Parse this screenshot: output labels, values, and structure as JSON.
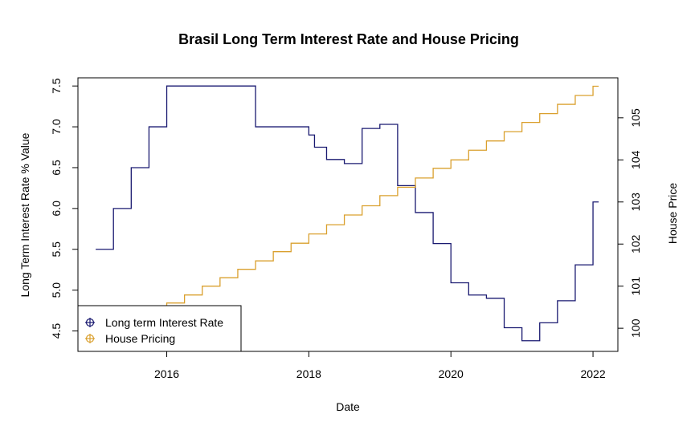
{
  "chart_data": {
    "type": "line",
    "title": "Brasil Long Term Interest Rate and House Pricing",
    "xlabel": "Date",
    "ylabel": "Long Term Interest Rate % Value",
    "y2label": "House Price",
    "xlim": [
      2014.75,
      2022.35
    ],
    "ylim": [
      4.25,
      7.6
    ],
    "y2lim": [
      99.45,
      105.95
    ],
    "x_ticks": [
      "2016",
      "2018",
      "2020",
      "2022"
    ],
    "y_ticks": [
      "4.5",
      "5.0",
      "5.5",
      "6.0",
      "6.5",
      "7.0",
      "7.5"
    ],
    "y2_ticks": [
      "100",
      "101",
      "102",
      "103",
      "104",
      "105"
    ],
    "grid": false,
    "legend_position": "bottom-left",
    "series": [
      {
        "name": "Long term Interest Rate",
        "axis": "left",
        "color": "#191970",
        "step": true,
        "x": [
          2015.0,
          2015.25,
          2015.5,
          2015.75,
          2016.0,
          2016.25,
          2016.5,
          2016.75,
          2017.0,
          2017.25,
          2017.5,
          2017.75,
          2018.0,
          2018.08,
          2018.25,
          2018.5,
          2018.75,
          2019.0,
          2019.25,
          2019.5,
          2019.75,
          2020.0,
          2020.25,
          2020.5,
          2020.75,
          2021.0,
          2021.25,
          2021.5,
          2021.75,
          2022.0,
          2022.08
        ],
        "y": [
          5.5,
          6.0,
          6.5,
          7.0,
          7.5,
          7.5,
          7.5,
          7.5,
          7.5,
          7.0,
          7.0,
          7.0,
          6.9,
          6.75,
          6.6,
          6.55,
          6.98,
          7.03,
          6.28,
          5.95,
          5.57,
          5.09,
          4.94,
          4.9,
          4.54,
          4.38,
          4.6,
          4.87,
          5.31,
          6.08,
          6.08
        ]
      },
      {
        "name": "House Pricing",
        "axis": "right",
        "color": "#DAA02E",
        "step": true,
        "x": [
          2015.0,
          2015.25,
          2015.5,
          2015.75,
          2016.0,
          2016.25,
          2016.5,
          2016.75,
          2017.0,
          2017.25,
          2017.5,
          2017.75,
          2018.0,
          2018.25,
          2018.5,
          2018.75,
          2019.0,
          2019.25,
          2019.5,
          2019.75,
          2020.0,
          2020.25,
          2020.5,
          2020.75,
          2021.0,
          2021.25,
          2021.5,
          2021.75,
          2022.0,
          2022.08
        ],
        "y": [
          99.8,
          100.0,
          100.2,
          100.4,
          100.6,
          100.79,
          101.0,
          101.2,
          101.4,
          101.6,
          101.82,
          102.02,
          102.24,
          102.46,
          102.69,
          102.91,
          103.15,
          103.35,
          103.57,
          103.8,
          104.0,
          104.23,
          104.45,
          104.67,
          104.89,
          105.1,
          105.32,
          105.53,
          105.75,
          105.75
        ]
      }
    ]
  }
}
